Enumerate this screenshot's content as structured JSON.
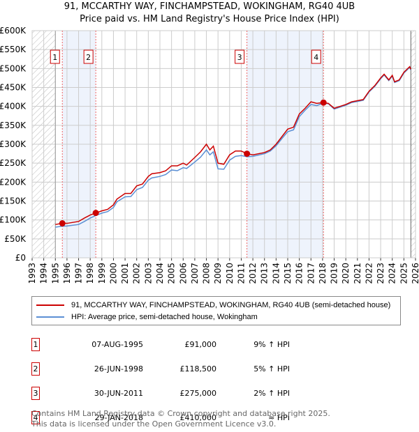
{
  "chart_data": {
    "type": "line",
    "title": "91, MCCARTHY WAY, FINCHAMPSTEAD, WOKINGHAM, RG40 4UB",
    "subtitle": "Price paid vs. HM Land Registry's House Price Index (HPI)",
    "xlim": [
      1993,
      2026
    ],
    "ylim": [
      0,
      600000
    ],
    "x_ticks": [
      "1993",
      "1994",
      "1995",
      "1996",
      "1997",
      "1998",
      "1999",
      "2000",
      "2001",
      "2002",
      "2003",
      "2004",
      "2005",
      "2006",
      "2007",
      "2008",
      "2009",
      "2010",
      "2011",
      "2012",
      "2013",
      "2014",
      "2015",
      "2016",
      "2017",
      "2018",
      "2019",
      "2020",
      "2021",
      "2022",
      "2023",
      "2024",
      "2025",
      "2026"
    ],
    "y_ticks": [
      {
        "v": 0,
        "label": "£0"
      },
      {
        "v": 50000,
        "label": "£50K"
      },
      {
        "v": 100000,
        "label": "£100K"
      },
      {
        "v": 150000,
        "label": "£150K"
      },
      {
        "v": 200000,
        "label": "£200K"
      },
      {
        "v": 250000,
        "label": "£250K"
      },
      {
        "v": 300000,
        "label": "£300K"
      },
      {
        "v": 350000,
        "label": "£350K"
      },
      {
        "v": 400000,
        "label": "£400K"
      },
      {
        "v": 450000,
        "label": "£450K"
      },
      {
        "v": 500000,
        "label": "£500K"
      },
      {
        "v": 550000,
        "label": "£550K"
      },
      {
        "v": 600000,
        "label": "£600K"
      }
    ],
    "colors": {
      "property": "#cc0000",
      "hpi": "#5b8fd4",
      "shade": "#eef3fc"
    },
    "series": [
      {
        "name": "91, MCCARTHY WAY, FINCHAMPSTEAD, WOKINGHAM, RG40 4UB (semi-detached house)",
        "x": [
          1995.0,
          1995.6,
          1996,
          1997,
          1997.5,
          1998,
          1998.5,
          1999,
          1999.5,
          2000,
          2000.3,
          2001,
          2001.5,
          2002,
          2002.5,
          2003,
          2003.3,
          2004,
          2004.5,
          2005,
          2005.5,
          2006,
          2006.3,
          2007,
          2007.5,
          2008,
          2008.3,
          2008.6,
          2009,
          2009.5,
          2010,
          2010.5,
          2011,
          2011.5,
          2012,
          2013,
          2013.5,
          2014,
          2014.5,
          2015,
          2015.5,
          2016,
          2016.5,
          2017,
          2017.5,
          2018,
          2018.5,
          2019,
          2019.5,
          2020,
          2020.5,
          2021,
          2021.5,
          2022,
          2022.5,
          2023,
          2023.3,
          2023.7,
          2024,
          2024.2,
          2024.6,
          2025,
          2025.5,
          2025.6
        ],
        "y": [
          88000,
          91000,
          91000,
          96000,
          105000,
          113000,
          118500,
          124000,
          128000,
          140000,
          155000,
          170000,
          170000,
          190000,
          195000,
          215000,
          222000,
          225000,
          230000,
          243000,
          243000,
          250000,
          245000,
          265000,
          280000,
          300000,
          285000,
          295000,
          250000,
          247000,
          272000,
          282000,
          282000,
          275000,
          272000,
          278000,
          285000,
          300000,
          320000,
          340000,
          345000,
          380000,
          395000,
          412000,
          408000,
          410000,
          408000,
          395000,
          400000,
          405000,
          412000,
          415000,
          418000,
          440000,
          455000,
          475000,
          485000,
          470000,
          482000,
          465000,
          470000,
          490000,
          505000,
          498000
        ]
      },
      {
        "name": "HPI: Average price, semi-detached house, Wokingham",
        "x": [
          1995.0,
          1995.6,
          1996,
          1997,
          1997.5,
          1998,
          1998.5,
          1999,
          1999.5,
          2000,
          2000.3,
          2001,
          2001.5,
          2002,
          2002.5,
          2003,
          2003.3,
          2004,
          2004.5,
          2005,
          2005.5,
          2006,
          2006.3,
          2007,
          2007.5,
          2008,
          2008.3,
          2008.6,
          2009,
          2009.5,
          2010,
          2010.5,
          2011,
          2011.5,
          2012,
          2013,
          2013.5,
          2014,
          2014.5,
          2015,
          2015.5,
          2016,
          2016.5,
          2017,
          2017.5,
          2018,
          2018.5,
          2019,
          2019.5,
          2020,
          2020.5,
          2021,
          2021.5,
          2022,
          2022.5,
          2023,
          2023.3,
          2023.7,
          2024,
          2024.2,
          2024.6,
          2025,
          2025.5,
          2025.6
        ],
        "y": [
          81000,
          83500,
          84000,
          88000,
          96000,
          105000,
          112000,
          118000,
          122000,
          133000,
          148000,
          161000,
          162000,
          180000,
          186000,
          205000,
          211000,
          215000,
          220000,
          232000,
          230000,
          238000,
          236000,
          253000,
          266000,
          285000,
          272000,
          280000,
          235000,
          234000,
          258000,
          268000,
          270000,
          267000,
          268000,
          275000,
          282000,
          296000,
          315000,
          333000,
          338000,
          373000,
          390000,
          405000,
          402000,
          408000,
          407000,
          393000,
          398000,
          403000,
          410000,
          413000,
          416000,
          438000,
          453000,
          473000,
          483000,
          468000,
          480000,
          463000,
          468000,
          488000,
          503000,
          496000
        ]
      }
    ],
    "sales": [
      {
        "n": "1",
        "x": 1995.6,
        "y": 91000,
        "date": "07-AUG-1995",
        "price": "£91,000",
        "rel": "9% ↑ HPI"
      },
      {
        "n": "2",
        "x": 1998.48,
        "y": 118500,
        "date": "26-JUN-1998",
        "price": "£118,500",
        "rel": "5% ↑ HPI"
      },
      {
        "n": "3",
        "x": 2011.49,
        "y": 275000,
        "date": "30-JUN-2011",
        "price": "£275,000",
        "rel": "2% ↑ HPI"
      },
      {
        "n": "4",
        "x": 2018.08,
        "y": 410000,
        "date": "29-JAN-2018",
        "price": "£410,000",
        "rel": "≈ HPI"
      }
    ],
    "shaded": [
      [
        1995.6,
        1998.48
      ],
      [
        2011.49,
        2018.08
      ]
    ],
    "hatched": [
      [
        1993,
        1995
      ],
      [
        2025.6,
        2026
      ]
    ]
  },
  "footer": {
    "line1": "Contains HM Land Registry data © Crown copyright and database right 2025.",
    "line2": "This data is licensed under the Open Government Licence v3.0."
  }
}
